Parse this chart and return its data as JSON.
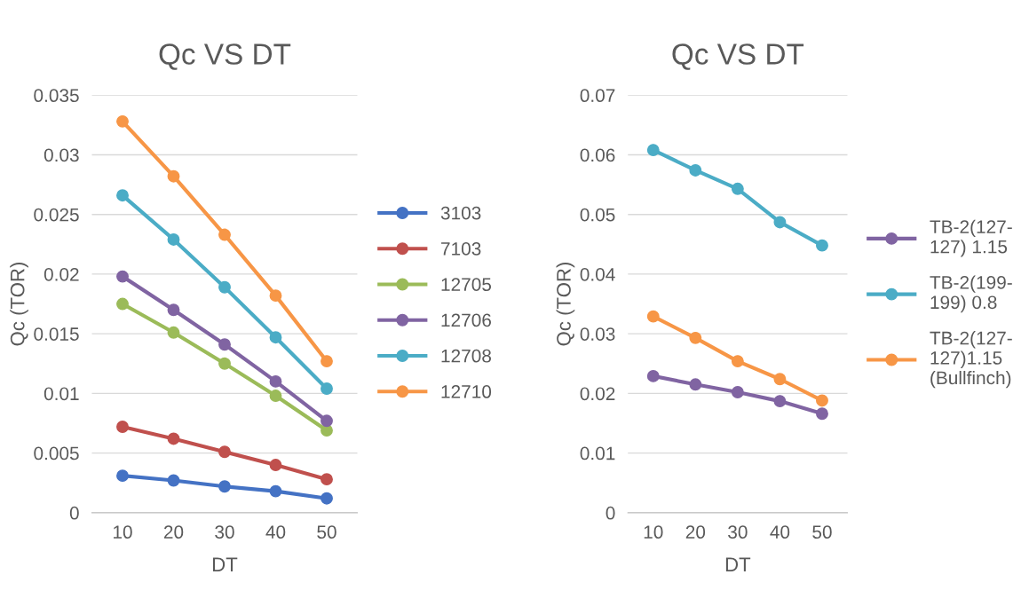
{
  "chart_data": [
    {
      "type": "line",
      "title": "Qc VS DT",
      "xlabel": "DT",
      "ylabel": "Qc (TOR)",
      "categories": [
        "10",
        "20",
        "30",
        "40",
        "50"
      ],
      "ylim": [
        0,
        0.035
      ],
      "yticks": [
        0,
        0.005,
        0.01,
        0.015,
        0.02,
        0.025,
        0.03,
        0.035
      ],
      "grid": "y",
      "legend": "right",
      "marker": "circle",
      "series": [
        {
          "name": "3103",
          "color": "#4472c4",
          "values": [
            0.0031,
            0.0027,
            0.0022,
            0.0018,
            0.0012
          ]
        },
        {
          "name": "7103",
          "color": "#c0504d",
          "values": [
            0.0072,
            0.0062,
            0.0051,
            0.004,
            0.0028
          ]
        },
        {
          "name": "12705",
          "color": "#9bbb59",
          "values": [
            0.0175,
            0.0151,
            0.0125,
            0.0098,
            0.0069
          ]
        },
        {
          "name": "12706",
          "color": "#8064a2",
          "values": [
            0.0198,
            0.017,
            0.0141,
            0.011,
            0.0077
          ]
        },
        {
          "name": "12708",
          "color": "#4bacc6",
          "values": [
            0.0266,
            0.0229,
            0.0189,
            0.0147,
            0.0104
          ]
        },
        {
          "name": "12710",
          "color": "#f79646",
          "values": [
            0.0328,
            0.0282,
            0.0233,
            0.0182,
            0.0127
          ]
        }
      ]
    },
    {
      "type": "line",
      "title": "Qc VS DT",
      "xlabel": "DT",
      "ylabel": "Qc (TOR)",
      "categories": [
        "10",
        "20",
        "30",
        "40",
        "50"
      ],
      "ylim": [
        0,
        0.07
      ],
      "yticks": [
        0,
        0.01,
        0.02,
        0.03,
        0.04,
        0.05,
        0.06,
        0.07
      ],
      "grid": "y",
      "legend": "right",
      "marker": "circle",
      "series": [
        {
          "name": "TB-2(127-\n127) 1.15",
          "color": "#8064a2",
          "values": [
            0.0229,
            0.0215,
            0.0202,
            0.0187,
            0.0166
          ]
        },
        {
          "name": "TB-2(199-\n199) 0.8",
          "color": "#4bacc6",
          "values": [
            0.0608,
            0.0574,
            0.0543,
            0.0487,
            0.0448
          ]
        },
        {
          "name": "TB-2(127-\n127)1.15\n(Bullfinch)",
          "color": "#f79646",
          "values": [
            0.0329,
            0.0293,
            0.0254,
            0.0224,
            0.0188
          ]
        }
      ]
    }
  ]
}
